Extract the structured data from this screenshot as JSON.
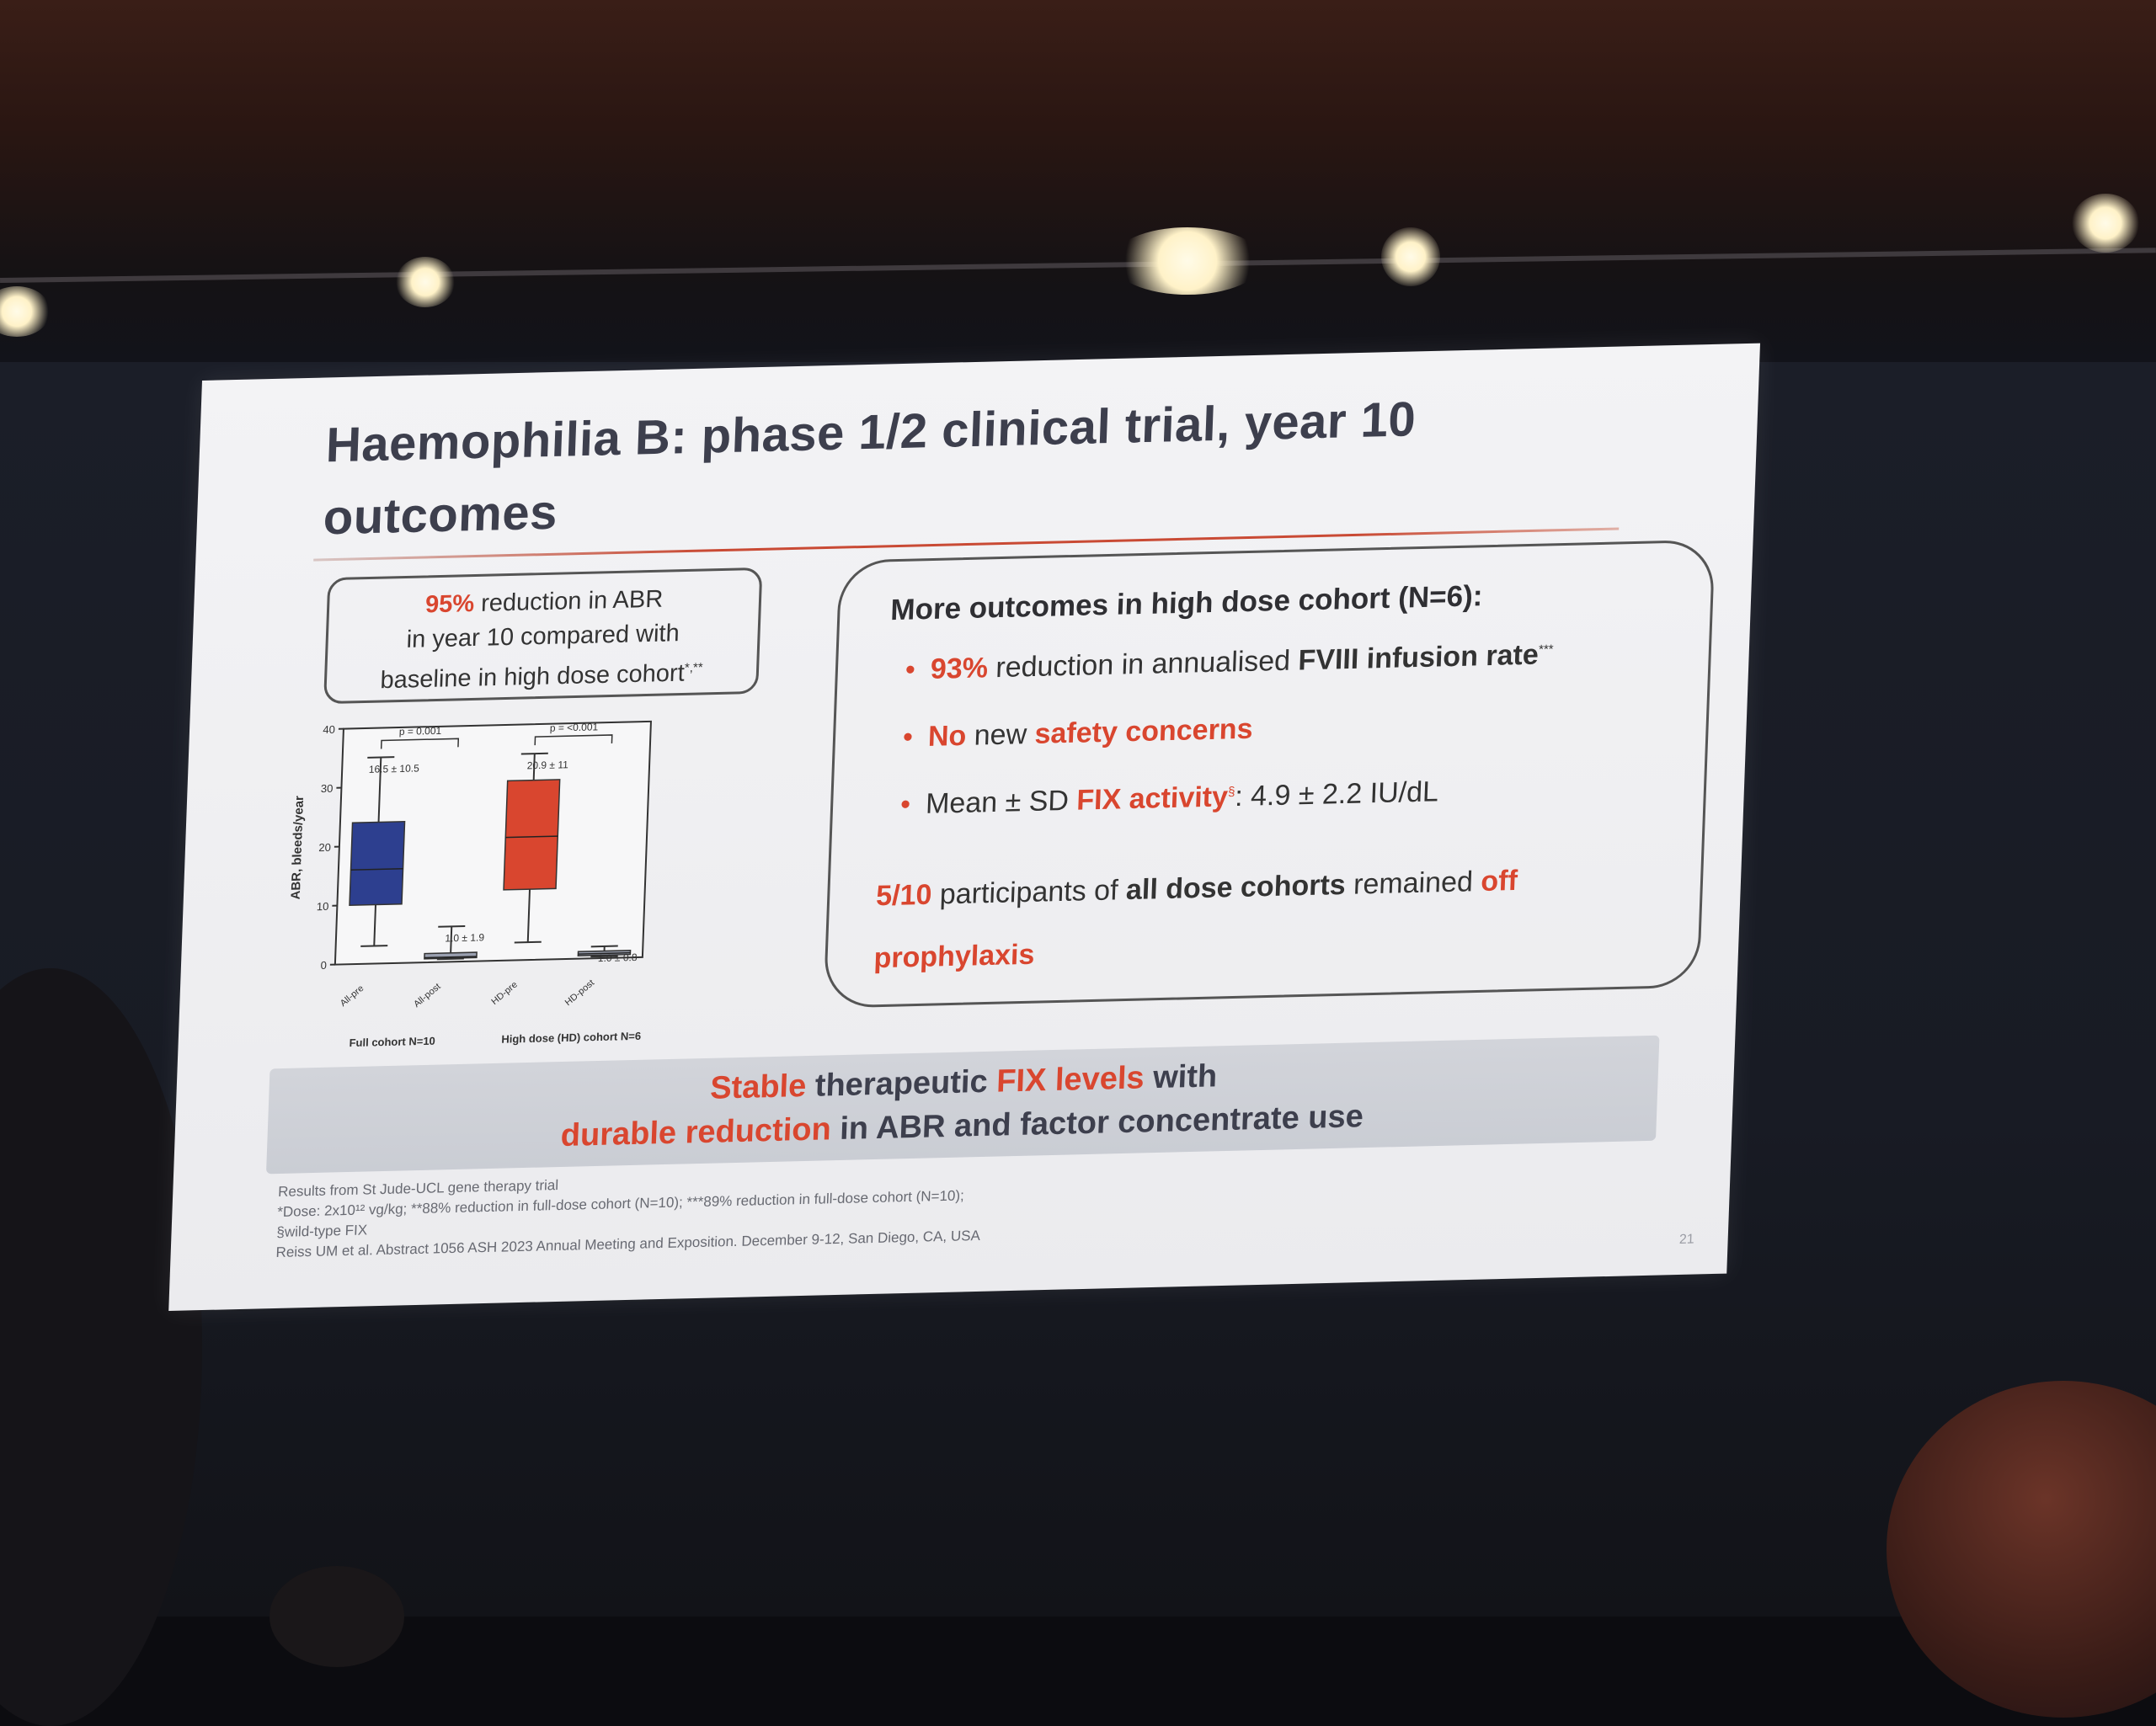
{
  "slide": {
    "title": "Haemophilia B: phase 1/2 clinical trial, year 10 outcomes",
    "left_box": {
      "pct": "95%",
      "text_1": " reduction in ABR",
      "text_2": "in year 10 compared with",
      "text_3": "baseline in high dose cohort",
      "marker": "*,**"
    },
    "right_box": {
      "heading": "More outcomes in high dose cohort (N=6):",
      "bullet_1": {
        "pct": "93%",
        "text": " reduction in annualised ",
        "bold": "FVIII infusion rate",
        "marker": "***"
      },
      "bullet_2": {
        "no": "No",
        "text": " new ",
        "red": "safety concerns"
      },
      "bullet_3": {
        "text": "Mean ± SD ",
        "red": "FIX activity",
        "marker": "§",
        "rest": ": 4.9 ± 2.2 IU/dL"
      },
      "last": {
        "count": "5/10",
        "text": " participants of ",
        "bold": "all dose cohorts",
        "text2": " remained ",
        "red": "off prophylaxis"
      }
    },
    "banner": {
      "l1_red": "Stable",
      "l1_text": " therapeutic ",
      "l1_red2": "FIX levels",
      "l1_text2": " with",
      "l2_red": "durable reduction",
      "l2_text": " in ABR and factor concentrate use"
    },
    "footnotes": [
      "Results from St Jude-UCL gene therapy trial",
      "*Dose: 2x10¹² vg/kg; **88% reduction in full-dose cohort (N=10); ***89% reduction in full-dose cohort (N=10);",
      "§wild-type FIX",
      "Reiss UM et al. Abstract 1056 ASH 2023 Annual Meeting and Exposition. December 9-12, San Diego, CA, USA"
    ],
    "page_number": "21"
  },
  "chart_data": {
    "type": "box",
    "ylabel": "ABR, bleeds/year",
    "yticks": [
      "0",
      "10",
      "20",
      "30",
      "40"
    ],
    "ylim": [
      0,
      40
    ],
    "categories": [
      "All-pre",
      "All-post",
      "HD-pre",
      "HD-post"
    ],
    "group_labels": [
      "Full cohort N=10",
      "High dose (HD) cohort N=6"
    ],
    "boxes": [
      {
        "min": 3,
        "q1": 10,
        "median": 16,
        "q3": 24,
        "max": 35,
        "label": "16.5 ± 10.5",
        "color": "#2d3f8f"
      },
      {
        "min": 0.5,
        "q1": 0.6,
        "median": 0.8,
        "q3": 1.5,
        "max": 6,
        "label": "1.0 ± 1.9",
        "color": "#9aa0b0"
      },
      {
        "min": 3,
        "q1": 12,
        "median": 20.9,
        "q3": 30.5,
        "max": 35,
        "label": "20.9 ± 11",
        "color": "#d9462f"
      },
      {
        "min": 0.3,
        "q1": 0.5,
        "median": 0.8,
        "q3": 1.2,
        "max": 2,
        "label": "1.0 ± 0.8",
        "color": "#9aa0b0"
      }
    ],
    "pvalues": [
      "p = 0.001",
      "p = <0.001"
    ]
  }
}
